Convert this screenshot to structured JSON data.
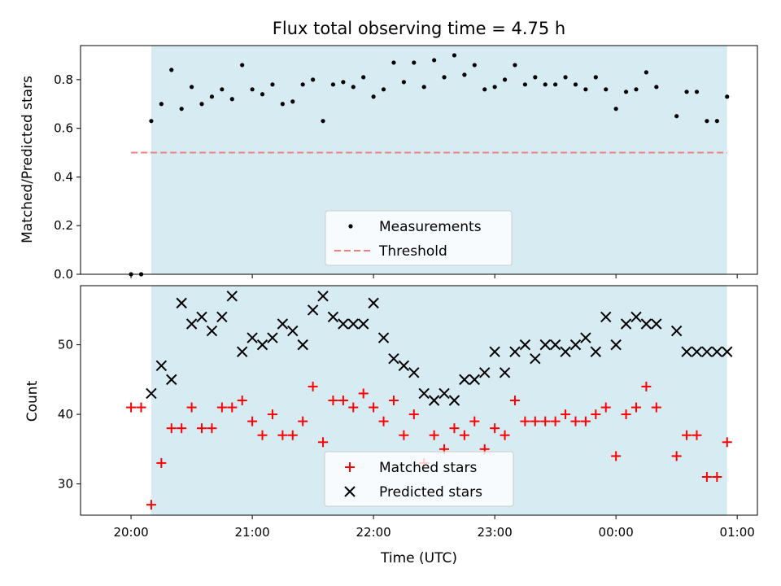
{
  "chart_data": [
    {
      "type": "scatter",
      "title": "Flux total observing time = 4.75 h",
      "xlabel": "",
      "ylabel": "Matched/Predicted stars",
      "xlim_minutes_from_2000": [
        -25,
        310
      ],
      "ylim": [
        0,
        0.94
      ],
      "yticks": [
        0.0,
        0.2,
        0.4,
        0.6,
        0.8
      ],
      "ytick_labels": [
        "0.0",
        "0.2",
        "0.4",
        "0.6",
        "0.8"
      ],
      "shaded_span": [
        "20:10",
        "00:55"
      ],
      "shade_color": "#add8e6",
      "threshold": {
        "name": "Threshold",
        "value": 0.5,
        "x_range": [
          "20:00",
          "00:55"
        ],
        "color": "#f08080",
        "style": "dashed"
      },
      "legend": {
        "position": "lower-center",
        "entries": [
          "Measurements",
          "Threshold"
        ]
      },
      "series": [
        {
          "name": "Measurements",
          "color": "#000000",
          "marker": "dot",
          "x": [
            "20:00",
            "20:05",
            "20:10",
            "20:15",
            "20:20",
            "20:25",
            "20:30",
            "20:35",
            "20:40",
            "20:45",
            "20:50",
            "20:55",
            "21:00",
            "21:05",
            "21:10",
            "21:15",
            "21:20",
            "21:25",
            "21:30",
            "21:35",
            "21:40",
            "21:45",
            "21:50",
            "21:55",
            "22:00",
            "22:05",
            "22:10",
            "22:15",
            "22:20",
            "22:25",
            "22:30",
            "22:35",
            "22:40",
            "22:45",
            "22:50",
            "22:55",
            "23:00",
            "23:05",
            "23:10",
            "23:15",
            "23:20",
            "23:25",
            "23:30",
            "23:35",
            "23:40",
            "23:45",
            "23:50",
            "23:55",
            "00:00",
            "00:05",
            "00:10",
            "00:15",
            "00:20",
            "00:30",
            "00:35",
            "00:40",
            "00:45",
            "00:50",
            "00:55"
          ],
          "y": [
            0.0,
            0.0,
            0.63,
            0.7,
            0.84,
            0.68,
            0.77,
            0.7,
            0.73,
            0.76,
            0.72,
            0.86,
            0.76,
            0.74,
            0.78,
            0.7,
            0.71,
            0.78,
            0.8,
            0.63,
            0.78,
            0.79,
            0.77,
            0.81,
            0.73,
            0.76,
            0.87,
            0.79,
            0.87,
            0.77,
            0.88,
            0.81,
            0.9,
            0.82,
            0.86,
            0.76,
            0.77,
            0.8,
            0.86,
            0.78,
            0.81,
            0.78,
            0.78,
            0.81,
            0.78,
            0.76,
            0.81,
            0.76,
            0.68,
            0.75,
            0.76,
            0.83,
            0.77,
            0.65,
            0.75,
            0.75,
            0.63,
            0.63,
            0.73
          ]
        }
      ]
    },
    {
      "type": "scatter",
      "title": "",
      "xlabel": "Time (UTC)",
      "ylabel": "Count",
      "xlim_minutes_from_2000": [
        -25,
        310
      ],
      "ylim": [
        25.5,
        58.5
      ],
      "yticks": [
        30,
        40,
        50
      ],
      "ytick_labels": [
        "30",
        "40",
        "50"
      ],
      "xticks": [
        "20:00",
        "21:00",
        "22:00",
        "23:00",
        "00:00",
        "01:00"
      ],
      "shaded_span": [
        "20:10",
        "00:55"
      ],
      "shade_color": "#add8e6",
      "legend": {
        "position": "lower-center",
        "entries": [
          "Matched stars",
          "Predicted stars"
        ]
      },
      "series": [
        {
          "name": "Matched stars",
          "color": "#ff0000",
          "marker": "plus",
          "x": [
            "20:00",
            "20:05",
            "20:10",
            "20:15",
            "20:20",
            "20:25",
            "20:30",
            "20:35",
            "20:40",
            "20:45",
            "20:50",
            "20:55",
            "21:00",
            "21:05",
            "21:10",
            "21:15",
            "21:20",
            "21:25",
            "21:30",
            "21:35",
            "21:40",
            "21:45",
            "21:50",
            "21:55",
            "22:00",
            "22:05",
            "22:10",
            "22:15",
            "22:20",
            "22:25",
            "22:30",
            "22:35",
            "22:40",
            "22:45",
            "22:50",
            "22:55",
            "23:00",
            "23:05",
            "23:10",
            "23:15",
            "23:20",
            "23:25",
            "23:30",
            "23:35",
            "23:40",
            "23:45",
            "23:50",
            "23:55",
            "00:00",
            "00:05",
            "00:10",
            "00:15",
            "00:20",
            "00:30",
            "00:35",
            "00:40",
            "00:45",
            "00:50",
            "00:55"
          ],
          "y": [
            41,
            41,
            27,
            33,
            38,
            38,
            41,
            38,
            38,
            41,
            41,
            42,
            39,
            37,
            40,
            37,
            37,
            39,
            44,
            36,
            42,
            42,
            41,
            43,
            41,
            39,
            42,
            37,
            40,
            33,
            37,
            35,
            38,
            37,
            39,
            35,
            38,
            37,
            42,
            39,
            39,
            39,
            39,
            40,
            39,
            39,
            40,
            41,
            34,
            40,
            41,
            44,
            41,
            34,
            37,
            37,
            31,
            31,
            36
          ]
        },
        {
          "name": "Predicted stars",
          "color": "#000000",
          "marker": "x",
          "x": [
            "20:10",
            "20:15",
            "20:20",
            "20:25",
            "20:30",
            "20:35",
            "20:40",
            "20:45",
            "20:50",
            "20:55",
            "21:00",
            "21:05",
            "21:10",
            "21:15",
            "21:20",
            "21:25",
            "21:30",
            "21:35",
            "21:40",
            "21:45",
            "21:50",
            "21:55",
            "22:00",
            "22:05",
            "22:10",
            "22:15",
            "22:20",
            "22:25",
            "22:30",
            "22:35",
            "22:40",
            "22:45",
            "22:50",
            "22:55",
            "23:00",
            "23:05",
            "23:10",
            "23:15",
            "23:20",
            "23:25",
            "23:30",
            "23:35",
            "23:40",
            "23:45",
            "23:50",
            "23:55",
            "00:00",
            "00:05",
            "00:10",
            "00:15",
            "00:20",
            "00:30",
            "00:35",
            "00:40",
            "00:45",
            "00:50",
            "00:55"
          ],
          "y": [
            43,
            47,
            45,
            56,
            53,
            54,
            52,
            54,
            57,
            49,
            51,
            50,
            51,
            53,
            52,
            50,
            55,
            57,
            54,
            53,
            53,
            53,
            56,
            51,
            48,
            47,
            46,
            43,
            42,
            43,
            42,
            45,
            45,
            46,
            49,
            46,
            49,
            50,
            48,
            50,
            50,
            49,
            50,
            51,
            49,
            54,
            50,
            53,
            54,
            53,
            53,
            52,
            49,
            49,
            49,
            49,
            49
          ]
        }
      ]
    }
  ]
}
